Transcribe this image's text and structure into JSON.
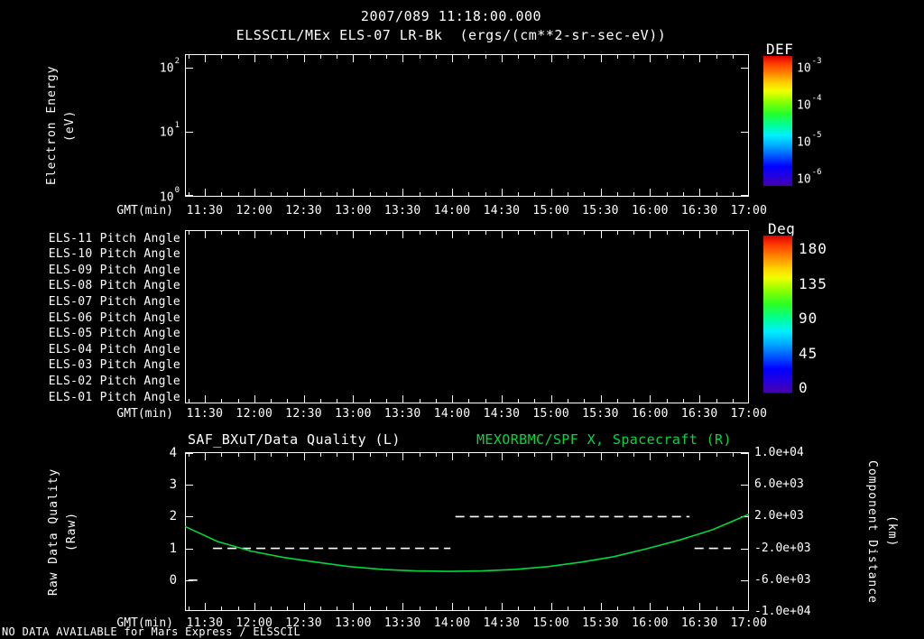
{
  "header": {
    "timestamp": "2007/089 11:18:00.000",
    "title": "ELSSCIL/MEx ELS-07 LR-Bk  (ergs/(cm**2-sr-sec-eV))"
  },
  "axes": {
    "x_label": "GMT(min)",
    "x_start": "11:18",
    "x_end": "17:00",
    "x_ticks": [
      "11:30",
      "12:00",
      "12:30",
      "13:00",
      "13:30",
      "14:00",
      "14:30",
      "15:00",
      "15:30",
      "16:00",
      "16:30",
      "17:00"
    ]
  },
  "energy_panel": {
    "ylabel_line1": "Electron Energy",
    "ylabel_line2": "(eV)",
    "yticks": [
      {
        "base": "10",
        "sup": "2"
      },
      {
        "base": "10",
        "sup": "1"
      },
      {
        "base": "10",
        "sup": "0"
      }
    ],
    "colorbar": {
      "title": "DEF",
      "ticks": [
        {
          "base": "10",
          "sup": "-3"
        },
        {
          "base": "10",
          "sup": "-4"
        },
        {
          "base": "10",
          "sup": "-5"
        },
        {
          "base": "10",
          "sup": "-6"
        }
      ]
    }
  },
  "pitch_panel": {
    "row_labels": [
      "ELS-11 Pitch Angle",
      "ELS-10 Pitch Angle",
      "ELS-09 Pitch Angle",
      "ELS-08 Pitch Angle",
      "ELS-07 Pitch Angle",
      "ELS-06 Pitch Angle",
      "ELS-05 Pitch Angle",
      "ELS-04 Pitch Angle",
      "ELS-03 Pitch Angle",
      "ELS-02 Pitch Angle",
      "ELS-01 Pitch Angle"
    ],
    "colorbar": {
      "title": "Deg",
      "ticks": [
        "180",
        "135",
        "90",
        "45",
        "0"
      ]
    }
  },
  "quality_panel": {
    "title_left": "SAF_BXuT/Data Quality (L)",
    "title_right": "MEXORBMC/SPF X, Spacecraft (R)",
    "ylabel_left_line1": "Raw Data Quality",
    "ylabel_left_line2": "(Raw)",
    "yticks_left": [
      "4",
      "3",
      "2",
      "1",
      "0"
    ],
    "ylabel_right_line1": "Component Distance",
    "ylabel_right_line2": "(km)",
    "yticks_right": [
      "1.0e+04",
      "6.0e+03",
      "2.0e+03",
      "-2.0e+03",
      "-6.0e+03",
      "-1.0e+04"
    ]
  },
  "footer": "NO DATA AVAILABLE for Mars Express / ELSSCIL",
  "colors": {
    "background": "#000000",
    "text": "#ffffff",
    "accent_green": "#00d93e"
  },
  "chart_data": [
    {
      "type": "heatmap",
      "title": "ELSSCIL/MEx ELS-07 LR-Bk (ergs/(cm**2-sr-sec-eV))",
      "xlabel": "GMT(min)",
      "ylabel": "Electron Energy (eV)",
      "yscale": "log",
      "ylim": [
        1,
        100
      ],
      "x_range": [
        "11:18",
        "17:00"
      ],
      "xticks": [
        "11:30",
        "12:00",
        "12:30",
        "13:00",
        "13:30",
        "14:00",
        "14:30",
        "15:00",
        "15:30",
        "16:00",
        "16:30",
        "17:00"
      ],
      "colorbar": {
        "label": "DEF",
        "tick_values": [
          0.001,
          0.0001,
          1e-05,
          1e-06
        ]
      },
      "values": []
    },
    {
      "type": "heatmap",
      "xlabel": "GMT(min)",
      "rows": [
        "ELS-11 Pitch Angle",
        "ELS-10 Pitch Angle",
        "ELS-09 Pitch Angle",
        "ELS-08 Pitch Angle",
        "ELS-07 Pitch Angle",
        "ELS-06 Pitch Angle",
        "ELS-05 Pitch Angle",
        "ELS-04 Pitch Angle",
        "ELS-03 Pitch Angle",
        "ELS-02 Pitch Angle",
        "ELS-01 Pitch Angle"
      ],
      "x_range": [
        "11:18",
        "17:00"
      ],
      "xticks": [
        "11:30",
        "12:00",
        "12:30",
        "13:00",
        "13:30",
        "14:00",
        "14:30",
        "15:00",
        "15:30",
        "16:00",
        "16:30",
        "17:00"
      ],
      "colorbar": {
        "label": "Deg",
        "tick_values": [
          180,
          135,
          90,
          45,
          0
        ]
      },
      "values": []
    },
    {
      "type": "line",
      "title_left": "SAF_BXuT/Data Quality (L)",
      "title_right": "MEXORBMC/SPF X, Spacecraft (R)",
      "xlabel": "GMT(min)",
      "x_range": [
        "11:18",
        "17:00"
      ],
      "x_unit": "minutes after 11:18",
      "xticks": [
        "11:30",
        "12:00",
        "12:30",
        "13:00",
        "13:30",
        "14:00",
        "14:30",
        "15:00",
        "15:30",
        "16:00",
        "16:30",
        "17:00"
      ],
      "left_axis": {
        "label": "Raw Data Quality (Raw)",
        "lim": [
          -1,
          4
        ],
        "ticks": [
          4,
          3,
          2,
          1,
          0
        ]
      },
      "right_axis": {
        "label": "Component Distance (km)",
        "lim": [
          -10000,
          10000
        ],
        "ticks": [
          10000,
          6000,
          2000,
          -2000,
          -6000,
          -10000
        ]
      },
      "series": [
        {
          "name": "Raw Data Quality",
          "axis": "left",
          "color": "#ffffff",
          "style": "dashed",
          "segments": [
            [
              2,
              10,
              0
            ],
            [
              17,
              161,
              1
            ],
            [
              164,
              306,
              2
            ],
            [
              309,
              331,
              1
            ]
          ]
        },
        {
          "name": "MEXORBMC/SPF X Spacecraft",
          "axis": "right",
          "color": "#00d93e",
          "style": "solid",
          "points_t_min": [
            0,
            20,
            40,
            60,
            80,
            100,
            120,
            140,
            160,
            180,
            200,
            220,
            240,
            260,
            280,
            300,
            320,
            342
          ],
          "points_km": [
            700,
            -1200,
            -2400,
            -3200,
            -3800,
            -4350,
            -4700,
            -4900,
            -4950,
            -4900,
            -4700,
            -4350,
            -3800,
            -3100,
            -2100,
            -1000,
            300,
            2250
          ]
        }
      ]
    }
  ]
}
